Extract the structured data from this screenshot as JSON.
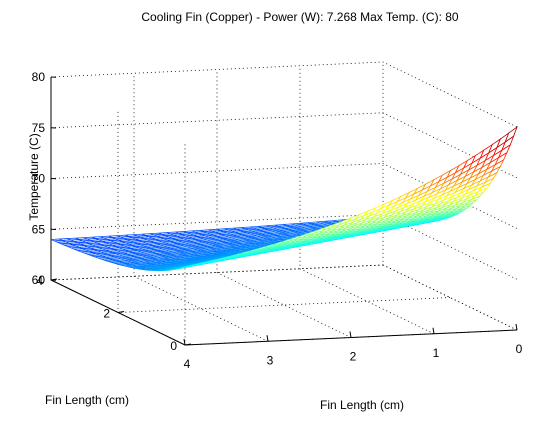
{
  "chart_data": {
    "type": "surface",
    "title": "Cooling Fin (Copper) - Power (W): 7.268 Max Temp. (C): 80",
    "xlabel": "Fin Length (cm)",
    "ylabel": "Fin Length (cm)",
    "zlabel": "Temperature (C)",
    "xlim": [
      0,
      4
    ],
    "ylim": [
      0,
      4
    ],
    "zlim": [
      60,
      80
    ],
    "x_ticks": [
      "0",
      "1",
      "2",
      "3",
      "4"
    ],
    "y_ticks": [
      "0",
      "2",
      "4"
    ],
    "z_ticks": [
      "60",
      "65",
      "70",
      "75",
      "80"
    ],
    "grid": true,
    "colormap": "jet",
    "surface_corners": [
      {
        "x": 0,
        "y": 0,
        "z": 80
      },
      {
        "x": 4,
        "y": 0,
        "z": 64.8
      },
      {
        "x": 0,
        "y": 4,
        "z": 61.2
      },
      {
        "x": 4,
        "y": 4,
        "z": 60.2
      }
    ]
  }
}
